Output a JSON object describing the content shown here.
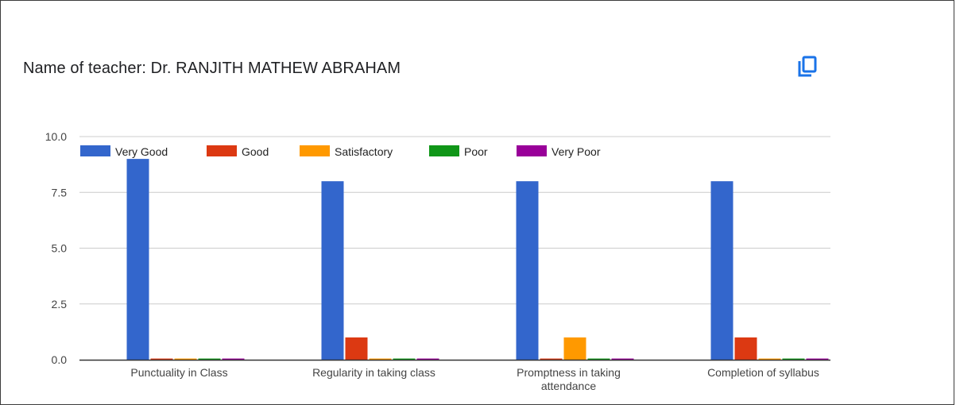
{
  "title": "Name of teacher: Dr. RANJITH MATHEW ABRAHAM",
  "copy_icon": "copy-icon",
  "chart_data": {
    "type": "bar",
    "categories": [
      [
        "Punctuality in Class"
      ],
      [
        "Regularity in taking class"
      ],
      [
        "Promptness in taking",
        "attendance"
      ],
      [
        "Completion of syllabus"
      ]
    ],
    "series": [
      {
        "name": "Very Good",
        "color": "#3366cc",
        "values": [
          9,
          8,
          8,
          8
        ]
      },
      {
        "name": "Good",
        "color": "#dc3912",
        "values": [
          0,
          1,
          0,
          1
        ]
      },
      {
        "name": "Satisfactory",
        "color": "#ff9900",
        "values": [
          0,
          0,
          1,
          0
        ]
      },
      {
        "name": "Poor",
        "color": "#109618",
        "values": [
          0,
          0,
          0,
          0
        ]
      },
      {
        "name": "Very Poor",
        "color": "#990099",
        "values": [
          0,
          0,
          0,
          0
        ]
      }
    ],
    "ylim": [
      0,
      10
    ],
    "yticks": [
      "0.0",
      "2.5",
      "5.0",
      "7.5",
      "10.0"
    ],
    "grid": true,
    "legend_position": "top"
  }
}
